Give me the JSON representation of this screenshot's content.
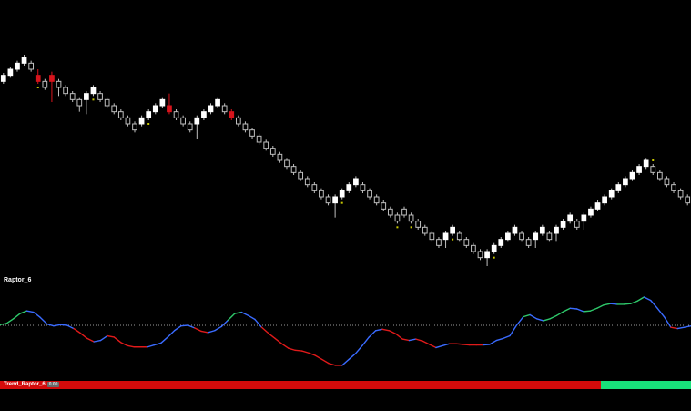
{
  "indicator": {
    "name": "Raptor_6"
  },
  "trend": {
    "label": "Trend_Raptor_6",
    "badge": "0.00",
    "split_fraction": 0.87,
    "color_down": "#d40b0b",
    "color_up": "#18e07a"
  },
  "colors": {
    "background": "#000000",
    "candle_up": "#ffffff",
    "candle_down": "#000000",
    "candle_outline": "#bfbfbf",
    "candle_red": "#d8141c",
    "dot": "#c8c800",
    "zero_line": "#9a9a9a",
    "line_up": "#2ec86a",
    "line_down": "#e01a1a",
    "line_flat": "#3a6bff"
  },
  "chart_data": {
    "type": "candlestick",
    "bars": [
      {
        "c": "u",
        "o": 57,
        "cl": 62,
        "h": 64,
        "l": 55
      },
      {
        "c": "u",
        "o": 62,
        "cl": 67,
        "h": 69,
        "l": 60
      },
      {
        "c": "u",
        "o": 67,
        "cl": 72,
        "h": 74,
        "l": 65
      },
      {
        "c": "u",
        "o": 72,
        "cl": 77,
        "h": 79,
        "l": 70
      },
      {
        "c": "d",
        "o": 72,
        "cl": 67,
        "h": 74,
        "l": 65
      },
      {
        "c": "r",
        "o": 62,
        "cl": 57,
        "h": 67,
        "l": 55,
        "dot": "b"
      },
      {
        "c": "d",
        "o": 57,
        "cl": 52,
        "h": 59,
        "l": 50
      },
      {
        "c": "r",
        "o": 62,
        "cl": 57,
        "h": 65,
        "l": 40
      },
      {
        "c": "d",
        "o": 57,
        "cl": 52,
        "h": 59,
        "l": 45
      },
      {
        "c": "d",
        "o": 52,
        "cl": 47,
        "h": 54,
        "l": 45
      },
      {
        "c": "d",
        "o": 47,
        "cl": 42,
        "h": 49,
        "l": 40
      },
      {
        "c": "d",
        "o": 42,
        "cl": 37,
        "h": 44,
        "l": 32
      },
      {
        "c": "u",
        "o": 42,
        "cl": 47,
        "h": 49,
        "l": 30
      },
      {
        "c": "u",
        "o": 47,
        "cl": 52,
        "h": 54,
        "l": 45,
        "dot": "b"
      },
      {
        "c": "d",
        "o": 47,
        "cl": 42,
        "h": 49,
        "l": 40
      },
      {
        "c": "d",
        "o": 42,
        "cl": 37,
        "h": 44,
        "l": 35
      },
      {
        "c": "d",
        "o": 37,
        "cl": 32,
        "h": 39,
        "l": 30
      },
      {
        "c": "d",
        "o": 32,
        "cl": 27,
        "h": 34,
        "l": 25
      },
      {
        "c": "d",
        "o": 27,
        "cl": 22,
        "h": 29,
        "l": 20
      },
      {
        "c": "d",
        "o": 22,
        "cl": 17,
        "h": 24,
        "l": 15
      },
      {
        "c": "u",
        "o": 22,
        "cl": 27,
        "h": 29,
        "l": 20
      },
      {
        "c": "u",
        "o": 27,
        "cl": 32,
        "h": 34,
        "l": 25,
        "dot": "b"
      },
      {
        "c": "u",
        "o": 32,
        "cl": 37,
        "h": 39,
        "l": 30
      },
      {
        "c": "u",
        "o": 37,
        "cl": 42,
        "h": 44,
        "l": 35
      },
      {
        "c": "r",
        "o": 37,
        "cl": 32,
        "h": 47,
        "l": 30
      },
      {
        "c": "d",
        "o": 32,
        "cl": 27,
        "h": 34,
        "l": 25
      },
      {
        "c": "d",
        "o": 27,
        "cl": 22,
        "h": 29,
        "l": 20
      },
      {
        "c": "d",
        "o": 22,
        "cl": 17,
        "h": 24,
        "l": 15
      },
      {
        "c": "u",
        "o": 22,
        "cl": 27,
        "h": 29,
        "l": 10
      },
      {
        "c": "u",
        "o": 27,
        "cl": 32,
        "h": 34,
        "l": 25
      },
      {
        "c": "u",
        "o": 32,
        "cl": 37,
        "h": 39,
        "l": 30
      },
      {
        "c": "u",
        "o": 37,
        "cl": 42,
        "h": 44,
        "l": 35
      },
      {
        "c": "d",
        "o": 37,
        "cl": 32,
        "h": 39,
        "l": 30
      },
      {
        "c": "r",
        "o": 32,
        "cl": 27,
        "h": 34,
        "l": 25
      },
      {
        "c": "d",
        "o": 27,
        "cl": 22,
        "h": 29,
        "l": 20
      },
      {
        "c": "d",
        "o": 22,
        "cl": 17,
        "h": 24,
        "l": 15
      },
      {
        "c": "d",
        "o": 17,
        "cl": 12,
        "h": 19,
        "l": 10
      },
      {
        "c": "d",
        "o": 12,
        "cl": 7,
        "h": 14,
        "l": 5
      },
      {
        "c": "d",
        "o": 7,
        "cl": 2,
        "h": 9,
        "l": 0
      },
      {
        "c": "d",
        "o": 2,
        "cl": -3,
        "h": 4,
        "l": -5
      },
      {
        "c": "d",
        "o": -3,
        "cl": -8,
        "h": -1,
        "l": -10
      },
      {
        "c": "d",
        "o": -8,
        "cl": -13,
        "h": -6,
        "l": -15
      },
      {
        "c": "d",
        "o": -13,
        "cl": -18,
        "h": -11,
        "l": -20
      },
      {
        "c": "d",
        "o": -18,
        "cl": -23,
        "h": -16,
        "l": -25
      },
      {
        "c": "d",
        "o": -23,
        "cl": -28,
        "h": -21,
        "l": -30
      },
      {
        "c": "d",
        "o": -28,
        "cl": -33,
        "h": -26,
        "l": -35
      },
      {
        "c": "d",
        "o": -33,
        "cl": -38,
        "h": -31,
        "l": -40
      },
      {
        "c": "d",
        "o": -38,
        "cl": -43,
        "h": -36,
        "l": -45
      },
      {
        "c": "u",
        "o": -43,
        "cl": -38,
        "h": -36,
        "l": -55
      },
      {
        "c": "u",
        "o": -38,
        "cl": -33,
        "h": -31,
        "l": -40,
        "dot": "b"
      },
      {
        "c": "u",
        "o": -33,
        "cl": -28,
        "h": -26,
        "l": -35
      },
      {
        "c": "u",
        "o": -28,
        "cl": -23,
        "h": -21,
        "l": -30
      },
      {
        "c": "d",
        "o": -28,
        "cl": -33,
        "h": -26,
        "l": -35
      },
      {
        "c": "d",
        "o": -33,
        "cl": -38,
        "h": -31,
        "l": -40
      },
      {
        "c": "d",
        "o": -38,
        "cl": -43,
        "h": -36,
        "l": -45
      },
      {
        "c": "d",
        "o": -43,
        "cl": -48,
        "h": -41,
        "l": -50
      },
      {
        "c": "d",
        "o": -48,
        "cl": -53,
        "h": -46,
        "l": -55
      },
      {
        "c": "d",
        "o": -53,
        "cl": -58,
        "h": -51,
        "l": -60,
        "dot": "b"
      },
      {
        "c": "d",
        "o": -48,
        "cl": -53,
        "h": -46,
        "l": -55
      },
      {
        "c": "d",
        "o": -53,
        "cl": -58,
        "h": -51,
        "l": -60,
        "dot": "b"
      },
      {
        "c": "d",
        "o": -58,
        "cl": -63,
        "h": -56,
        "l": -65
      },
      {
        "c": "d",
        "o": -63,
        "cl": -68,
        "h": -61,
        "l": -70
      },
      {
        "c": "d",
        "o": -68,
        "cl": -73,
        "h": -66,
        "l": -75
      },
      {
        "c": "d",
        "o": -73,
        "cl": -78,
        "h": -71,
        "l": -80
      },
      {
        "c": "u",
        "o": -73,
        "cl": -68,
        "h": -66,
        "l": -80
      },
      {
        "c": "u",
        "o": -68,
        "cl": -63,
        "h": -61,
        "l": -70,
        "dot": "b"
      },
      {
        "c": "d",
        "o": -68,
        "cl": -73,
        "h": -66,
        "l": -75
      },
      {
        "c": "d",
        "o": -73,
        "cl": -78,
        "h": -71,
        "l": -80
      },
      {
        "c": "d",
        "o": -78,
        "cl": -83,
        "h": -76,
        "l": -85
      },
      {
        "c": "d",
        "o": -83,
        "cl": -88,
        "h": -81,
        "l": -90
      },
      {
        "c": "u",
        "o": -88,
        "cl": -83,
        "h": -81,
        "l": -95
      },
      {
        "c": "u",
        "o": -83,
        "cl": -78,
        "h": -76,
        "l": -85,
        "dot": "b"
      },
      {
        "c": "u",
        "o": -78,
        "cl": -73,
        "h": -71,
        "l": -80
      },
      {
        "c": "u",
        "o": -73,
        "cl": -68,
        "h": -66,
        "l": -75
      },
      {
        "c": "u",
        "o": -68,
        "cl": -63,
        "h": -61,
        "l": -70
      },
      {
        "c": "d",
        "o": -68,
        "cl": -73,
        "h": -66,
        "l": -75
      },
      {
        "c": "d",
        "o": -73,
        "cl": -78,
        "h": -71,
        "l": -80
      },
      {
        "c": "u",
        "o": -73,
        "cl": -68,
        "h": -66,
        "l": -80
      },
      {
        "c": "u",
        "o": -68,
        "cl": -63,
        "h": -61,
        "l": -70
      },
      {
        "c": "d",
        "o": -68,
        "cl": -73,
        "h": -66,
        "l": -75
      },
      {
        "c": "u",
        "o": -68,
        "cl": -63,
        "h": -61,
        "l": -75
      },
      {
        "c": "u",
        "o": -63,
        "cl": -58,
        "h": -56,
        "l": -65
      },
      {
        "c": "u",
        "o": -58,
        "cl": -53,
        "h": -51,
        "l": -60
      },
      {
        "c": "d",
        "o": -58,
        "cl": -63,
        "h": -56,
        "l": -65
      },
      {
        "c": "u",
        "o": -58,
        "cl": -53,
        "h": -51,
        "l": -65
      },
      {
        "c": "u",
        "o": -53,
        "cl": -48,
        "h": -46,
        "l": -55
      },
      {
        "c": "u",
        "o": -48,
        "cl": -43,
        "h": -41,
        "l": -50
      },
      {
        "c": "u",
        "o": -43,
        "cl": -38,
        "h": -36,
        "l": -45
      },
      {
        "c": "u",
        "o": -38,
        "cl": -33,
        "h": -31,
        "l": -40
      },
      {
        "c": "u",
        "o": -33,
        "cl": -28,
        "h": -26,
        "l": -35
      },
      {
        "c": "u",
        "o": -28,
        "cl": -23,
        "h": -21,
        "l": -30
      },
      {
        "c": "u",
        "o": -23,
        "cl": -18,
        "h": -16,
        "l": -25
      },
      {
        "c": "u",
        "o": -18,
        "cl": -13,
        "h": -11,
        "l": -20
      },
      {
        "c": "u",
        "o": -13,
        "cl": -8,
        "h": -6,
        "l": -15
      },
      {
        "c": "d",
        "o": -13,
        "cl": -18,
        "h": -11,
        "l": -20,
        "dot": "t"
      },
      {
        "c": "d",
        "o": -18,
        "cl": -23,
        "h": -16,
        "l": -25
      },
      {
        "c": "d",
        "o": -23,
        "cl": -28,
        "h": -21,
        "l": -30
      },
      {
        "c": "d",
        "o": -28,
        "cl": -33,
        "h": -26,
        "l": -35
      },
      {
        "c": "d",
        "o": -33,
        "cl": -38,
        "h": -31,
        "l": -40
      },
      {
        "c": "d",
        "o": -38,
        "cl": -43,
        "h": -36,
        "l": -45
      }
    ],
    "oscillator": {
      "zero": 0,
      "points": [
        0.1,
        0.3,
        1.0,
        1.8,
        2.2,
        2.0,
        1.2,
        0.2,
        -0.1,
        0.1,
        0.0,
        -0.5,
        -1.2,
        -2.0,
        -2.5,
        -2.3,
        -1.6,
        -1.8,
        -2.6,
        -3.1,
        -3.3,
        -3.3,
        -3.3,
        -3.0,
        -2.7,
        -1.8,
        -0.8,
        -0.1,
        0.0,
        -0.4,
        -0.9,
        -1.1,
        -0.8,
        -0.2,
        0.8,
        1.8,
        2.0,
        1.5,
        0.9,
        -0.3,
        -1.2,
        -2.0,
        -2.8,
        -3.5,
        -3.8,
        -3.9,
        -4.2,
        -4.6,
        -5.2,
        -5.8,
        -6.1,
        -6.1,
        -5.2,
        -4.3,
        -3.1,
        -1.8,
        -0.8,
        -0.6,
        -0.8,
        -1.3,
        -2.1,
        -2.3,
        -2.1,
        -2.4,
        -2.9,
        -3.4,
        -3.1,
        -2.8,
        -2.8,
        -2.9,
        -3.0,
        -3.0,
        -3.0,
        -2.9,
        -2.3,
        -2.0,
        -1.6,
        0.0,
        1.3,
        1.6,
        1.0,
        0.7,
        1.0,
        1.5,
        2.1,
        2.6,
        2.5,
        2.1,
        2.2,
        2.6,
        3.1,
        3.3,
        3.2,
        3.2,
        3.3,
        3.7,
        4.3,
        3.8,
        2.6,
        1.3,
        -0.3,
        -0.5,
        -0.3,
        -0.1
      ]
    },
    "trend": {
      "states": [
        "down",
        "up"
      ]
    }
  }
}
